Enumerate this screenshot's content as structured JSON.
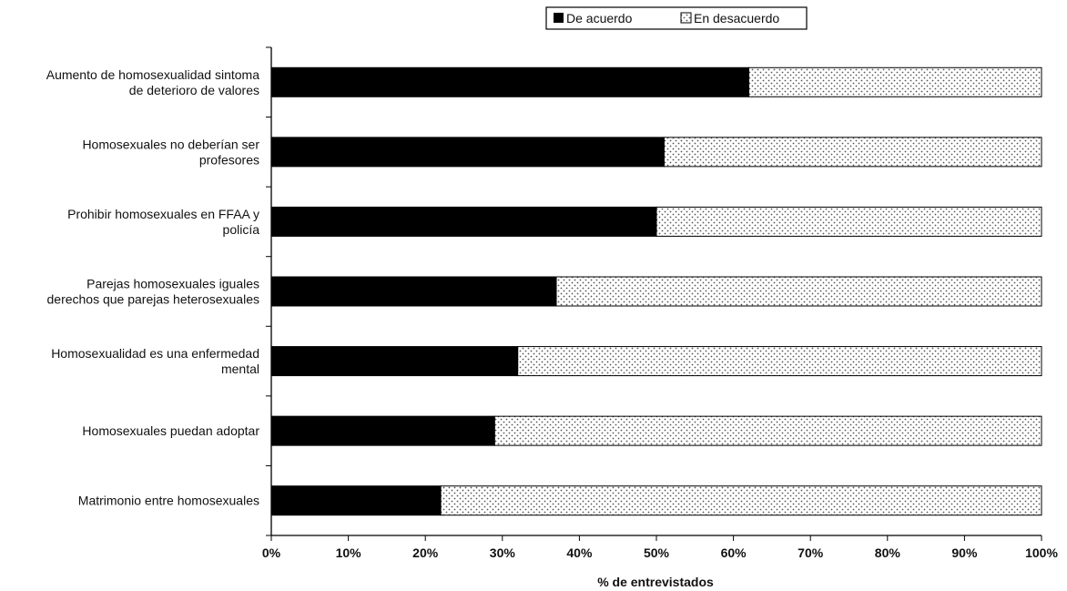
{
  "chart_data": {
    "type": "bar",
    "orientation": "horizontal",
    "stacked": true,
    "stack_mode": "percent",
    "categories": [
      [
        "Aumento de homosexualidad sintoma",
        "de deterioro de valores"
      ],
      [
        "Homosexuales no deberían ser",
        "profesores"
      ],
      [
        "Prohibir homosexuales en FFAA y",
        "policía"
      ],
      [
        "Parejas homosexuales iguales",
        "derechos que parejas heterosexuales"
      ],
      [
        "Homosexualidad es una enfermedad",
        "mental"
      ],
      [
        "Homosexuales puedan adoptar"
      ],
      [
        "Matrimonio entre homosexuales"
      ]
    ],
    "series": [
      {
        "name": "De acuerdo",
        "color": "#000000",
        "pattern": "solid",
        "values": [
          62,
          51,
          50,
          37,
          32,
          29,
          22
        ]
      },
      {
        "name": "En desacuerdo",
        "color": "#ffffff",
        "pattern": "dotted",
        "values": [
          38,
          49,
          50,
          63,
          68,
          71,
          78
        ]
      }
    ],
    "xlabel": "% de entrevistados",
    "xlim": [
      0,
      100
    ],
    "xticks": [
      "0%",
      "10%",
      "20%",
      "30%",
      "40%",
      "50%",
      "60%",
      "70%",
      "80%",
      "90%",
      "100%"
    ],
    "grid": false,
    "legend": "top"
  }
}
